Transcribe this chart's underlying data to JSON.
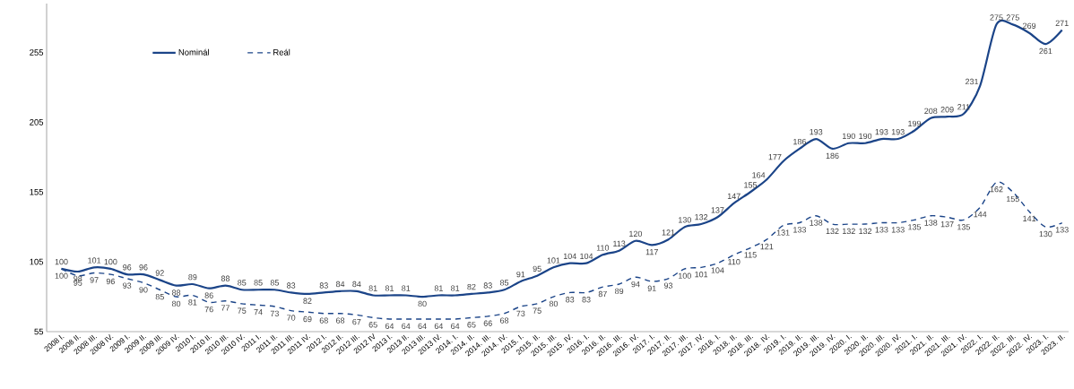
{
  "chart_data": {
    "type": "line",
    "categories": [
      "2008 I.",
      "2008 II.",
      "2008 III.",
      "2008 IV.",
      "2009 I.",
      "2009 II.",
      "2009 III.",
      "2009 IV.",
      "2010 I.",
      "2010 II.",
      "2010 III.",
      "2010 IV.",
      "2011 I.",
      "2011 II.",
      "2011 III.",
      "2011 IV.",
      "2012 I.",
      "2012 II.",
      "2012 III.",
      "2012 IV",
      "2013 I.",
      "2013 II.",
      "2013 III.",
      "2013 IV.",
      "2014. I.",
      "2014. II.",
      "2014. III.",
      "2014. IV.",
      "2015. I.",
      "2015. II.",
      "2015. III.",
      "2015. IV.",
      "2016. I.",
      "2016. II.",
      "2016. III.",
      "2016. IV.",
      "2017. I.",
      "2017. II.",
      "2017. III.",
      "2017. IV.",
      "2018. I.",
      "2018. II.",
      "2018. III.",
      "2018. IV.",
      "2019. I.",
      "2019. II.",
      "2019. III.",
      "2019. IV.",
      "2020. I.",
      "2020. II.",
      "2020. III.",
      "2020. IV.",
      "2021. I.",
      "2021. II.",
      "2021. III.",
      "2021. IV.",
      "2022. I.",
      "2022. II.",
      "2022. III.",
      "2022. IV.",
      "2023. I.",
      "2023. II."
    ],
    "series": [
      {
        "name": "Nominál",
        "color": "#1b4488",
        "line_style": "solid",
        "values": [
          100,
          98,
          101,
          100,
          96,
          96,
          92,
          88,
          89,
          86,
          88,
          85,
          85,
          85,
          83,
          82,
          83,
          84,
          84,
          81,
          81,
          81,
          80,
          81,
          81,
          82,
          83,
          85,
          91,
          95,
          101,
          104,
          104,
          110,
          113,
          120,
          117,
          121,
          130,
          132,
          137,
          147,
          155,
          164,
          177,
          186,
          193,
          186,
          190,
          190,
          193,
          193,
          199,
          208,
          209,
          211,
          231,
          275,
          275,
          269,
          261,
          271
        ]
      },
      {
        "name": "Reál",
        "color": "#1b4488",
        "line_style": "dashed",
        "values": [
          100,
          95,
          97,
          96,
          93,
          90,
          85,
          80,
          81,
          76,
          77,
          75,
          74,
          73,
          70,
          69,
          68,
          68,
          67,
          65,
          64,
          64,
          64,
          64,
          64,
          65,
          66,
          68,
          73,
          75,
          80,
          83,
          83,
          87,
          89,
          94,
          91,
          93,
          100,
          101,
          104,
          110,
          115,
          121,
          131,
          133,
          138,
          132,
          132,
          132,
          133,
          133,
          135,
          138,
          137,
          135,
          144,
          162,
          155,
          141,
          130,
          133
        ]
      }
    ],
    "ylim": [
      55,
      290
    ],
    "yticks": [
      55,
      105,
      155,
      205,
      255
    ],
    "legend": "top left",
    "data_labels": true,
    "grid": false
  }
}
